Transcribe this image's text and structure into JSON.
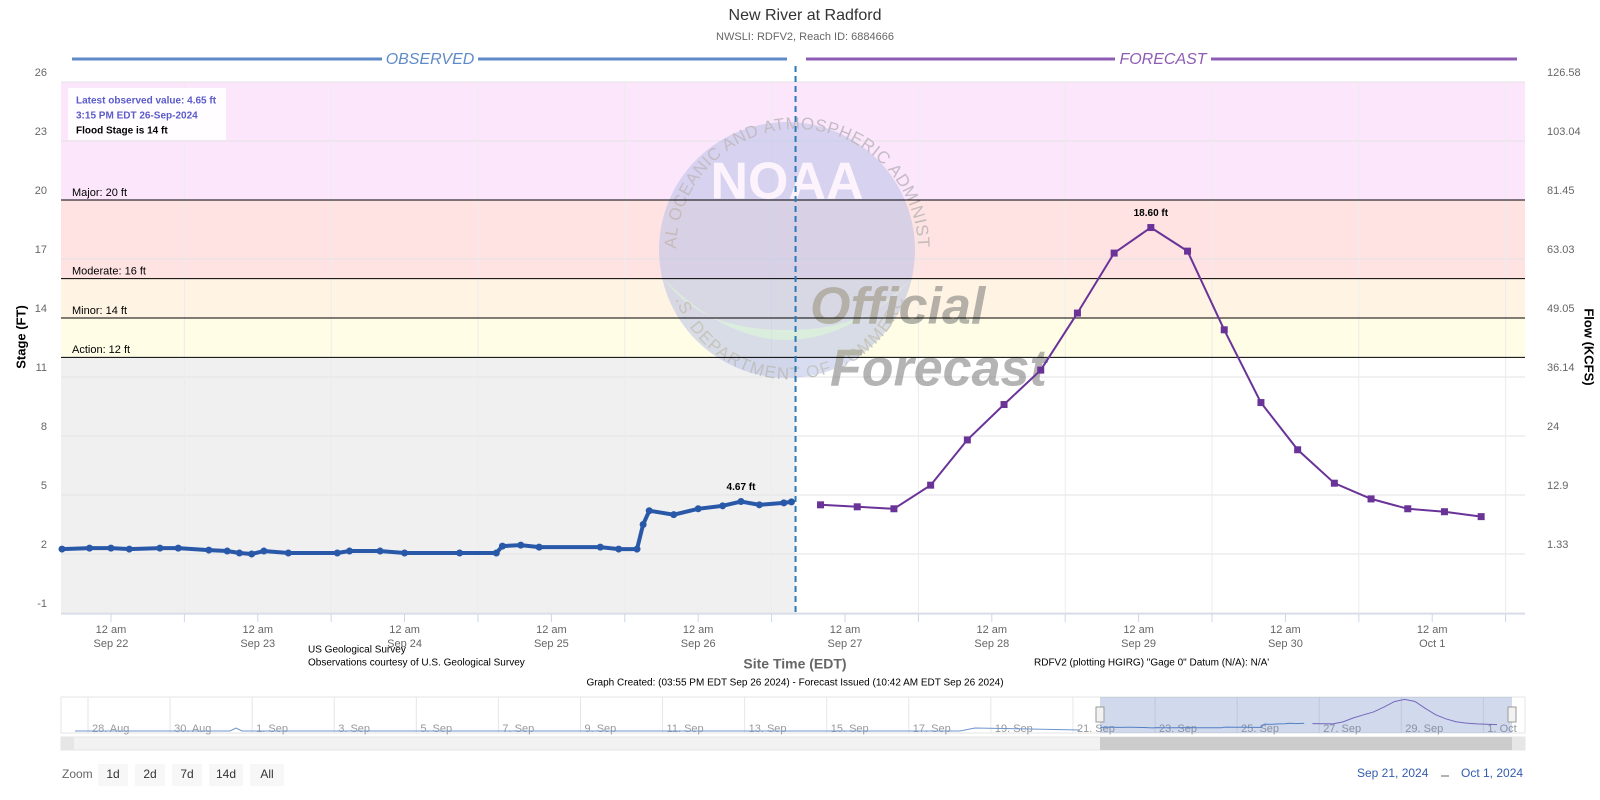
{
  "chart_data": {
    "type": "line",
    "title": "New River at Radford",
    "subtitle": "NWSLI: RDFV2, Reach ID: 6884666",
    "y_label": "Stage (FT)",
    "y2_label": "Flow (KCFS)",
    "x_label": "Site Time (EDT)",
    "ylim": [
      -1,
      26
    ],
    "yticks": [
      -1,
      2,
      5,
      8,
      11,
      14,
      17,
      20,
      23,
      26
    ],
    "y2ticks": [
      1.33,
      12.9,
      24,
      36.14,
      49.05,
      63.03,
      81.45,
      103.04,
      126.58
    ],
    "xlim": [
      "2024-09-21T15:50",
      "2024-10-01T15:10"
    ],
    "xticks": [
      {
        "value": "2024-09-22T00:00",
        "label": "12 am",
        "date": "Sep 22"
      },
      {
        "value": "2024-09-23T00:00",
        "label": "12 am",
        "date": "Sep 23"
      },
      {
        "value": "2024-09-24T00:00",
        "label": "12 am",
        "date": "Sep 24"
      },
      {
        "value": "2024-09-25T00:00",
        "label": "12 am",
        "date": "Sep 25"
      },
      {
        "value": "2024-09-26T00:00",
        "label": "12 am",
        "date": "Sep 26"
      },
      {
        "value": "2024-09-27T00:00",
        "label": "12 am",
        "date": "Sep 27"
      },
      {
        "value": "2024-09-28T00:00",
        "label": "12 am",
        "date": "Sep 28"
      },
      {
        "value": "2024-09-29T00:00",
        "label": "12 am",
        "date": "Sep 29"
      },
      {
        "value": "2024-09-30T00:00",
        "label": "12 am",
        "date": "Sep 30"
      },
      {
        "value": "2024-10-01T00:00",
        "label": "12 am",
        "date": "Oct 1"
      }
    ],
    "x_minor_ticks": [
      "2024-09-22T12:00",
      "2024-09-23T12:00",
      "2024-09-24T12:00",
      "2024-09-25T12:00",
      "2024-09-26T12:00",
      "2024-09-27T12:00",
      "2024-09-28T12:00",
      "2024-09-29T12:00",
      "2024-09-30T12:00",
      "2024-10-01T12:00"
    ],
    "grid": true,
    "now": "2024-09-26T15:55",
    "thresholds": [
      {
        "value": 12,
        "label": "Action: 12 ft",
        "color": "#fffde6"
      },
      {
        "value": 14,
        "label": "Minor: 14 ft",
        "color": "#fff4e3"
      },
      {
        "value": 16,
        "label": "Moderate: 16 ft",
        "color": "#ffe3e3"
      },
      {
        "value": 20,
        "label": "Major: 20 ft",
        "color": "#fbe6fb"
      }
    ],
    "below_action_color": "#f0f0f0",
    "series": [
      {
        "name": "OBSERVED",
        "color": "#2a58a8",
        "header_color": "#5f8ac8",
        "x": [
          "2024-09-21T16:00",
          "2024-09-21T20:30",
          "2024-09-22T00:00",
          "2024-09-22T03:00",
          "2024-09-22T08:00",
          "2024-09-22T11:00",
          "2024-09-22T16:00",
          "2024-09-22T19:00",
          "2024-09-22T21:00",
          "2024-09-22T23:00",
          "2024-09-23T01:00",
          "2024-09-23T05:00",
          "2024-09-23T13:00",
          "2024-09-23T15:00",
          "2024-09-23T20:00",
          "2024-09-24T00:00",
          "2024-09-24T09:00",
          "2024-09-24T15:00",
          "2024-09-24T16:00",
          "2024-09-24T19:00",
          "2024-09-24T22:00",
          "2024-09-25T08:00",
          "2024-09-25T11:00",
          "2024-09-25T14:00",
          "2024-09-25T15:00",
          "2024-09-25T16:00",
          "2024-09-25T20:00",
          "2024-09-26T00:00",
          "2024-09-26T04:00",
          "2024-09-26T07:00",
          "2024-09-26T10:00",
          "2024-09-26T14:00",
          "2024-09-26T15:15"
        ],
        "values": [
          2.25,
          2.3,
          2.3,
          2.25,
          2.3,
          2.3,
          2.2,
          2.15,
          2.05,
          2.0,
          2.15,
          2.05,
          2.05,
          2.15,
          2.15,
          2.05,
          2.05,
          2.05,
          2.4,
          2.45,
          2.35,
          2.35,
          2.25,
          2.25,
          3.5,
          4.2,
          4.0,
          4.3,
          4.45,
          4.67,
          4.5,
          4.6,
          4.65
        ],
        "value_labels": [
          null,
          null,
          null,
          null,
          null,
          null,
          null,
          null,
          null,
          null,
          null,
          null,
          null,
          null,
          null,
          null,
          null,
          null,
          null,
          null,
          null,
          null,
          null,
          null,
          null,
          null,
          null,
          null,
          null,
          "4.67 ft",
          null,
          null,
          null
        ]
      },
      {
        "name": "FORECAST",
        "color": "#6a3398",
        "header_color": "#8e5cb4",
        "x": [
          "2024-09-26T20:00",
          "2024-09-27T02:00",
          "2024-09-27T08:00",
          "2024-09-27T14:00",
          "2024-09-27T20:00",
          "2024-09-28T02:00",
          "2024-09-28T08:00",
          "2024-09-28T14:00",
          "2024-09-28T20:00",
          "2024-09-29T02:00",
          "2024-09-29T08:00",
          "2024-09-29T14:00",
          "2024-09-29T20:00",
          "2024-09-30T02:00",
          "2024-09-30T08:00",
          "2024-09-30T14:00",
          "2024-09-30T20:00",
          "2024-10-01T02:00",
          "2024-10-01T08:00"
        ],
        "values": [
          4.5,
          4.4,
          4.3,
          5.5,
          7.8,
          9.6,
          11.35,
          14.25,
          17.3,
          18.6,
          17.4,
          13.4,
          9.7,
          7.3,
          5.6,
          4.8,
          4.3,
          4.15,
          3.9
        ],
        "value_labels": [
          null,
          null,
          null,
          null,
          null,
          null,
          null,
          null,
          null,
          "18.60 ft",
          null,
          null,
          null,
          null,
          null,
          null,
          null,
          null,
          null
        ]
      }
    ],
    "info": [
      "Latest observed value: 4.65 ft",
      "3:15 PM EDT 26-Sep-2024",
      "Flood Stage is 14 ft"
    ],
    "credits": [
      "US Geological Survey",
      "Observations courtesy of U.S. Geological Survey"
    ],
    "datum": "RDFV2 (plotting HGIRG) \"Gage 0\" Datum (N/A): N/A'",
    "created": "Graph Created: (03:55 PM EDT Sep 26 2024) - Forecast Issued (10:42 AM EDT Sep 26 2024)",
    "watermark": {
      "logo": "NOAA",
      "ring_top": "NATIONAL OCEANIC AND ATMOSPHERIC ADMINISTRATION",
      "ring_bottom": "U.S. DEPARTMENT OF COMMERCE",
      "lines": [
        "Official",
        "Forecast"
      ]
    },
    "navigator": {
      "labels": [
        "28. Aug",
        "30. Aug",
        "1. Sep",
        "3. Sep",
        "5. Sep",
        "7. Sep",
        "9. Sep",
        "11. Sep",
        "13. Sep",
        "15. Sep",
        "17. Sep",
        "19. Sep",
        "21. Sep",
        "23. Sep",
        "25. Sep",
        "27. Sep",
        "29. Sep",
        "1. Oct"
      ],
      "range": [
        "Sep 21, 2024",
        "Oct 1, 2024"
      ],
      "zoom_label": "Zoom",
      "zoom": [
        "1d",
        "2d",
        "7d",
        "14d",
        "All"
      ]
    }
  }
}
